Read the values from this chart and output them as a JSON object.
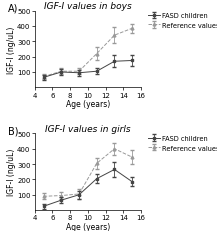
{
  "panel_A": {
    "title": "IGF-I values in boys",
    "fasd_x": [
      5,
      7,
      9,
      11,
      13,
      15
    ],
    "fasd_y": [
      65,
      100,
      95,
      105,
      170,
      175
    ],
    "fasd_yerr": [
      15,
      20,
      20,
      20,
      40,
      35
    ],
    "ref_x": [
      5,
      7,
      9,
      11,
      13,
      15
    ],
    "ref_y": [
      70,
      105,
      105,
      220,
      340,
      385
    ],
    "ref_yerr": [
      15,
      20,
      20,
      40,
      50,
      30
    ]
  },
  "panel_B": {
    "title": "IGF-I values in girls",
    "fasd_x": [
      5,
      7,
      9,
      11,
      13,
      15
    ],
    "fasd_y": [
      25,
      65,
      100,
      205,
      265,
      185
    ],
    "fasd_yerr": [
      15,
      20,
      25,
      30,
      50,
      30
    ],
    "ref_x": [
      5,
      7,
      9,
      11,
      13,
      15
    ],
    "ref_y": [
      90,
      95,
      105,
      305,
      400,
      345
    ],
    "ref_yerr": [
      20,
      20,
      30,
      35,
      40,
      45
    ]
  },
  "ylabel": "IGF-I (ng/uL)",
  "xlabel": "Age (years)",
  "ylim": [
    0,
    500
  ],
  "xlim": [
    4,
    16
  ],
  "xticks": [
    4,
    6,
    8,
    10,
    12,
    14,
    16
  ],
  "yticks": [
    100,
    200,
    300,
    400,
    500
  ],
  "fasd_label": "FASD children",
  "ref_label": "Reference values",
  "fasd_color": "#444444",
  "ref_color": "#999999",
  "bg_color": "#ffffff",
  "title_fontsize": 6.5,
  "label_fontsize": 5.5,
  "tick_fontsize": 5,
  "legend_fontsize": 4.8
}
